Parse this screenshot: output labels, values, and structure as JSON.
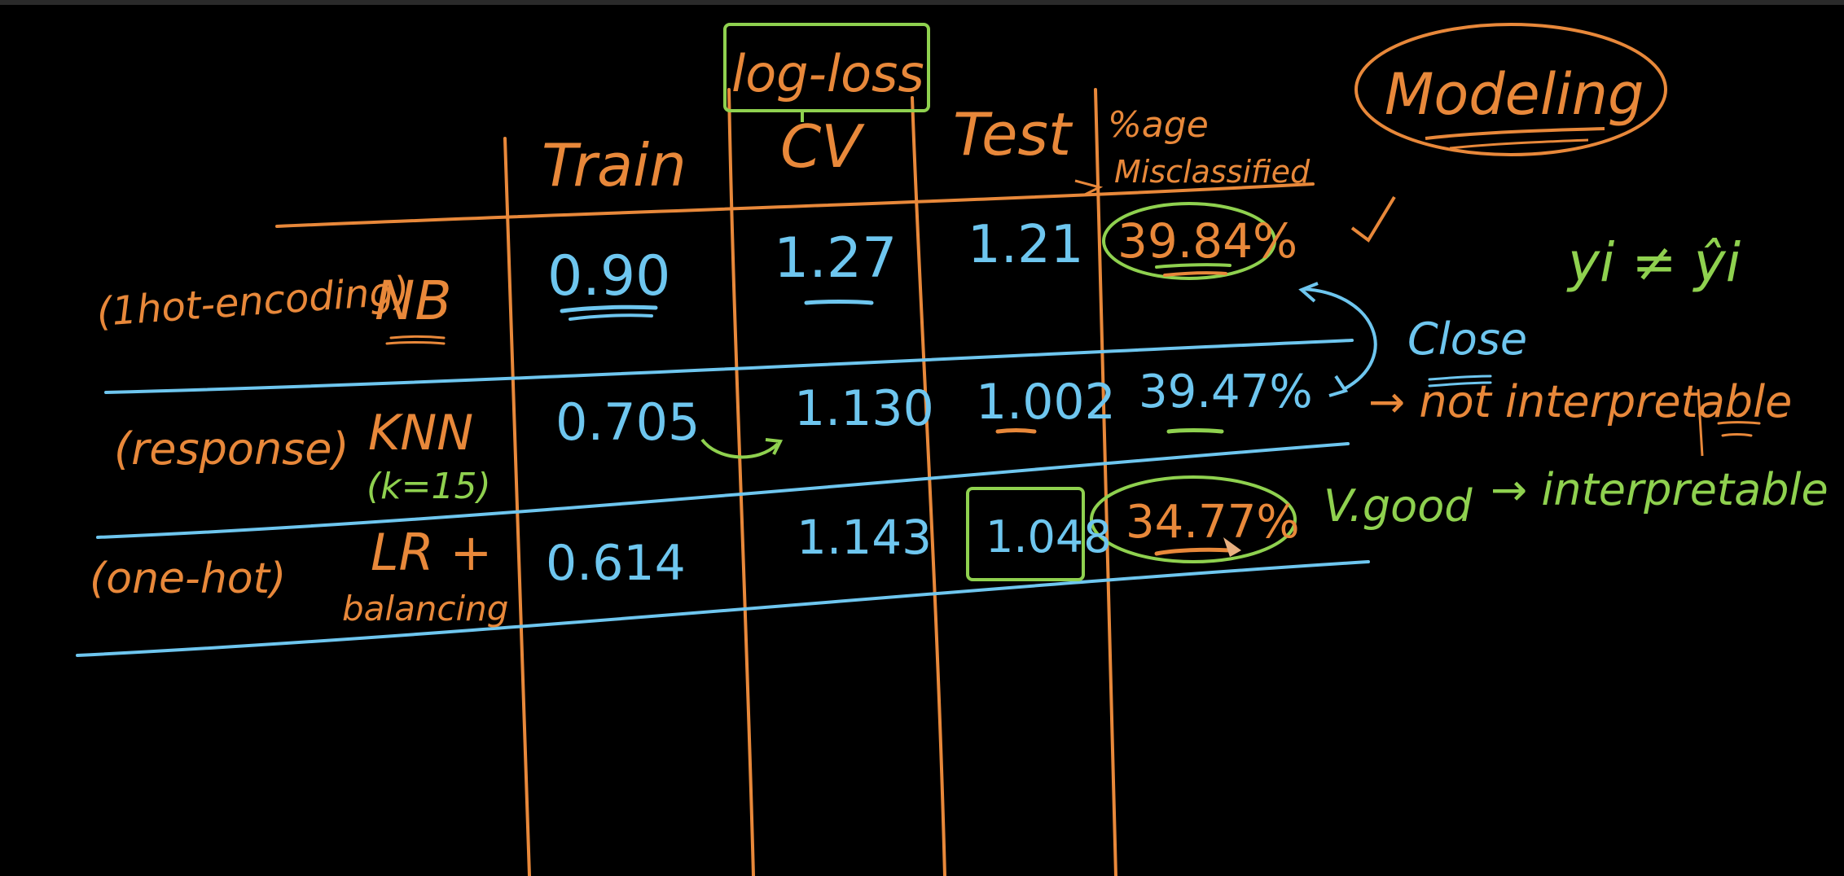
{
  "colors": {
    "background": "#000000",
    "orange": "#e8883a",
    "blue": "#6ec6ef",
    "green": "#8fd14f"
  },
  "header": {
    "metric": "log-loss",
    "train": "Train",
    "cv": "CV",
    "test": "Test",
    "misclass_line1": "%age",
    "misclass_line2": "Misclassified",
    "topic": "Modeling"
  },
  "rows": [
    {
      "encoding": "(1hot-encoding)",
      "model": "NB",
      "train": "0.90",
      "cv": "1.27",
      "test": "1.21",
      "misclassified": "39.84%"
    },
    {
      "encoding": "(response)",
      "model": "KNN",
      "param": "(k=15)",
      "train": "0.705",
      "cv": "1.130",
      "test": "1.002",
      "misclassified": "39.47%"
    },
    {
      "encoding": "(one-hot)",
      "model": "LR +",
      "model_line2": "balancing",
      "train": "0.614",
      "cv": "1.143",
      "test": "1.048",
      "misclassified": "34.77%"
    }
  ],
  "notes": {
    "check": "✓",
    "inequality": "yi ≠ ŷi",
    "close": "Close",
    "not_interpretable": "→ not interpretable",
    "vgood": "V.good",
    "interpretable": "→ interpretable"
  }
}
